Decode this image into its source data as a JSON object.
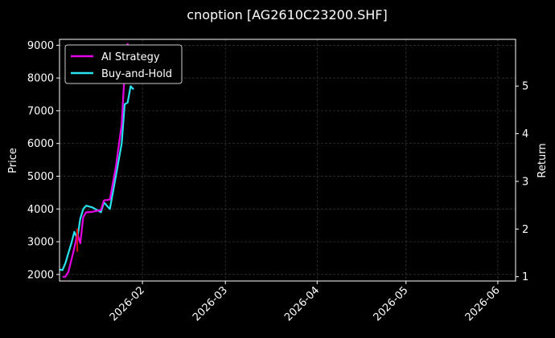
{
  "chart_data": {
    "type": "line",
    "title": "cnoption [AG2610C23200.SHF]",
    "ylabel_left": "Price",
    "ylabel_right": "Return",
    "x_ticks": [
      "2026-02",
      "2026-03",
      "2026-04",
      "2026-05",
      "2026-06"
    ],
    "x_tick_dates": [
      "2026-02-01",
      "2026-03-01",
      "2026-04-01",
      "2026-05-01",
      "2026-06-01"
    ],
    "x_range": [
      "2026-01-04",
      "2026-06-07"
    ],
    "y_left_ticks": [
      2000,
      3000,
      4000,
      5000,
      6000,
      7000,
      8000,
      9000
    ],
    "y_left_range": [
      1800,
      9180
    ],
    "y_right_ticks": [
      1,
      2,
      3,
      4,
      5
    ],
    "y_right_range": [
      0.91,
      5.98
    ],
    "grid": true,
    "legend_position": "top-left",
    "colors": {
      "ai_strategy": "#e600e6",
      "buy_and_hold": "#29e3f0",
      "red_segment": "#e01010",
      "grid": "#3a3a3a",
      "axis": "#ffffff"
    },
    "series": [
      {
        "name": "AI Strategy",
        "axis": "right",
        "points": [
          [
            "2026-01-05",
            1.0
          ],
          [
            "2026-01-06",
            1.0
          ],
          [
            "2026-01-07",
            1.1
          ],
          [
            "2026-01-08",
            1.35
          ],
          [
            "2026-01-09",
            1.6
          ],
          [
            "2026-01-10",
            1.9
          ],
          [
            "2026-01-11",
            1.7
          ],
          [
            "2026-01-12",
            2.25
          ],
          [
            "2026-01-13",
            2.35
          ],
          [
            "2026-01-15",
            2.36
          ],
          [
            "2026-01-18",
            2.4
          ],
          [
            "2026-01-19",
            2.6
          ],
          [
            "2026-01-21",
            2.62
          ],
          [
            "2026-01-23",
            3.3
          ],
          [
            "2026-01-25",
            4.2
          ],
          [
            "2026-01-26",
            5.3
          ],
          [
            "2026-01-27",
            5.9
          ]
        ]
      },
      {
        "name": "Buy-and-Hold",
        "axis": "left",
        "points": [
          [
            "2026-01-04",
            2150
          ],
          [
            "2026-01-05",
            2130
          ],
          [
            "2026-01-06",
            2350
          ],
          [
            "2026-01-07",
            2650
          ],
          [
            "2026-01-08",
            2950
          ],
          [
            "2026-01-09",
            3300
          ],
          [
            "2026-01-10",
            3100
          ],
          [
            "2026-01-11",
            3700
          ],
          [
            "2026-01-12",
            4000
          ],
          [
            "2026-01-13",
            4100
          ],
          [
            "2026-01-15",
            4050
          ],
          [
            "2026-01-18",
            3900
          ],
          [
            "2026-01-19",
            4200
          ],
          [
            "2026-01-21",
            4000
          ],
          [
            "2026-01-23",
            5000
          ],
          [
            "2026-01-25",
            6000
          ],
          [
            "2026-01-26",
            7200
          ],
          [
            "2026-01-27",
            7250
          ],
          [
            "2026-01-28",
            7750
          ],
          [
            "2026-01-29",
            7650
          ]
        ]
      },
      {
        "name": "",
        "axis": "left",
        "style": "red_segment",
        "points": [
          [
            "2026-01-10",
            3400
          ],
          [
            "2026-01-10",
            2700
          ]
        ]
      }
    ]
  }
}
